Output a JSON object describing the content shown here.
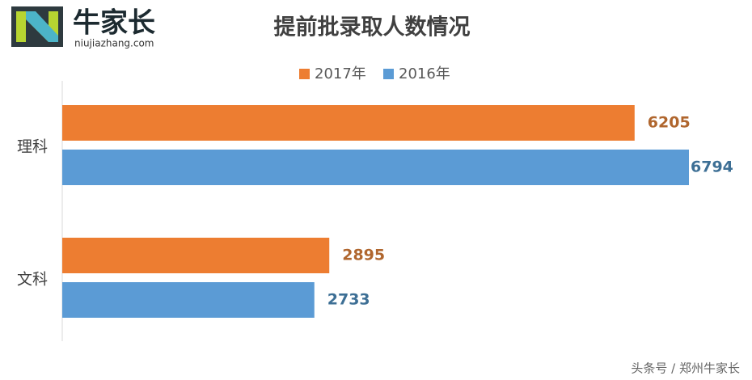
{
  "logo": {
    "name": "牛家长",
    "site": "niujiazhang.com"
  },
  "watermark": "头条号 / 郑州牛家长",
  "chart_data": {
    "type": "bar",
    "orientation": "horizontal",
    "title": "提前批录取人数情况",
    "categories": [
      "理科",
      "文科"
    ],
    "series": [
      {
        "name": "2017年",
        "color": "#ed7d31",
        "label_color": "#b0662e",
        "values": [
          6205,
          2895
        ]
      },
      {
        "name": "2016年",
        "color": "#5b9bd5",
        "label_color": "#3d6f95",
        "values": [
          6794,
          2733
        ]
      }
    ],
    "legend": "top",
    "grid": false
  }
}
